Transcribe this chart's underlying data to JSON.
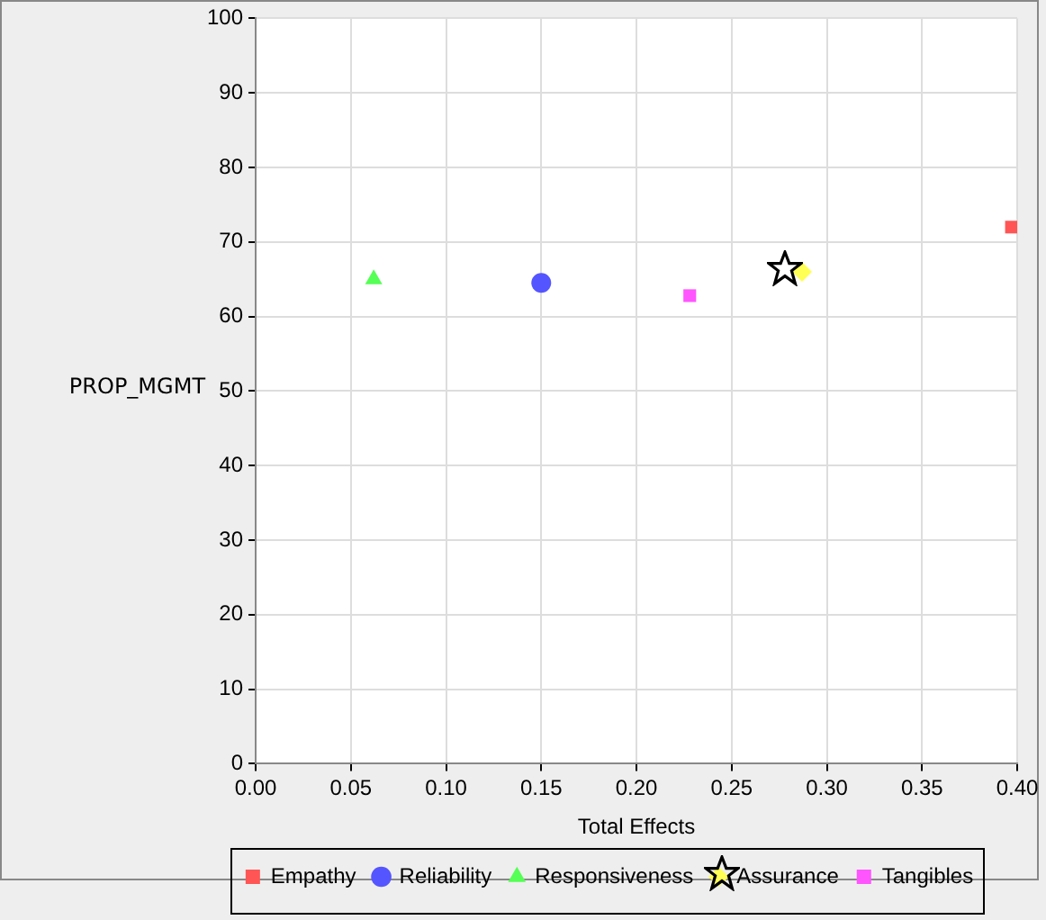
{
  "chart_data": {
    "type": "scatter",
    "xlabel": "Total Effects",
    "ylabel": "PROP_MGMT",
    "xlim": [
      0,
      0.4
    ],
    "xticks": [
      {
        "value": 0,
        "label": "0.00"
      },
      {
        "value": 0.05,
        "label": "0.05"
      },
      {
        "value": 0.1,
        "label": "0.10"
      },
      {
        "value": 0.15,
        "label": "0.15"
      },
      {
        "value": 0.2,
        "label": "0.20"
      },
      {
        "value": 0.25,
        "label": "0.25"
      },
      {
        "value": 0.3,
        "label": "0.30"
      },
      {
        "value": 0.35,
        "label": "0.35"
      },
      {
        "value": 0.4,
        "label": "0.40"
      }
    ],
    "ylim": [
      0,
      100
    ],
    "yticks": [
      0,
      10,
      20,
      30,
      40,
      50,
      60,
      70,
      80,
      90,
      100
    ],
    "grid": true,
    "legend": "bottom",
    "series": [
      {
        "name": "Empathy",
        "color": "#ff5555",
        "marker": "square",
        "x": [
          0.397
        ],
        "values": [
          72
        ]
      },
      {
        "name": "Reliability",
        "color": "#5555ff",
        "marker": "circle",
        "x": [
          0.15
        ],
        "values": [
          64.5
        ]
      },
      {
        "name": "Responsiveness",
        "color": "#55ff55",
        "marker": "triangle",
        "x": [
          0.062
        ],
        "values": [
          65
        ]
      },
      {
        "name": "Assurance",
        "color": "#ffff55",
        "marker": "diamond",
        "x": [
          0.287
        ],
        "values": [
          66
        ]
      },
      {
        "name": "Tangibles",
        "color": "#ff55ff",
        "marker": "square",
        "x": [
          0.228
        ],
        "values": [
          62.8
        ]
      }
    ]
  }
}
